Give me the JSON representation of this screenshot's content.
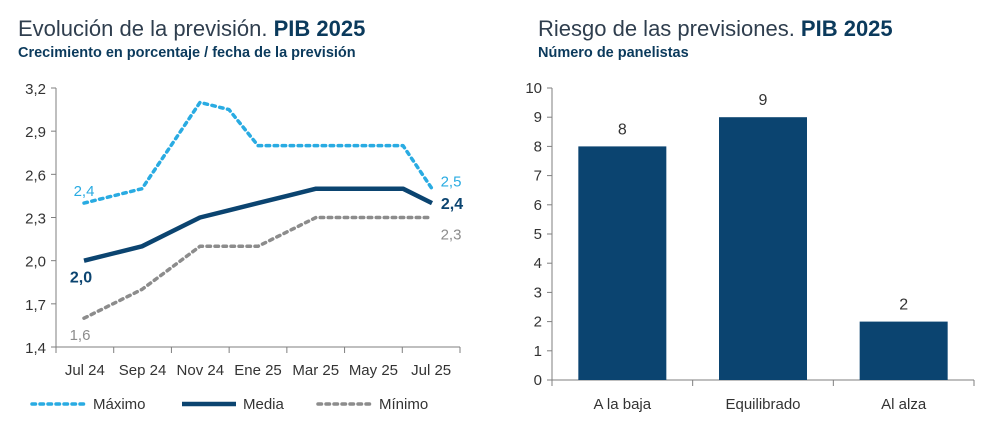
{
  "left": {
    "title_plain": "Evolución de la previsión. ",
    "title_bold": "PIB 2025",
    "subtitle": "Crecimiento en porcentaje / fecha de la previsión"
  },
  "right": {
    "title_plain": "Riesgo de las previsiones. ",
    "title_bold": "PIB 2025",
    "subtitle": "Número de panelistas"
  },
  "colors": {
    "max": "#29abe2",
    "mean": "#0b4470",
    "min": "#8c8c8c",
    "bar": "#0b4470",
    "axis": "#7f7f7f"
  },
  "chart_data": [
    {
      "type": "line",
      "title": "Evolución de la previsión. PIB 2025",
      "subtitle": "Crecimiento en porcentaje / fecha de la previsión",
      "x_tick_labels": [
        "Jul 24",
        "Sep 24",
        "Nov 24",
        "Ene 25",
        "Mar 25",
        "May 25",
        "Jul 25"
      ],
      "x": [
        0,
        1,
        2,
        3,
        4,
        5,
        6,
        7,
        8,
        9,
        10,
        11,
        12
      ],
      "ylim": [
        1.4,
        3.2
      ],
      "yticks": [
        1.4,
        1.7,
        2.0,
        2.3,
        2.6,
        2.9,
        3.2
      ],
      "ytick_labels": [
        "1,4",
        "1,7",
        "2,0",
        "2,3",
        "2,6",
        "2,9",
        "3,2"
      ],
      "series": [
        {
          "name": "Máximo",
          "style": "dotted",
          "values": [
            2.4,
            2.45,
            2.5,
            2.8,
            3.1,
            3.05,
            2.8,
            2.8,
            2.8,
            2.8,
            2.8,
            2.8,
            2.5
          ],
          "first_label": "2,4",
          "last_label": "2,5"
        },
        {
          "name": "Media",
          "style": "solid",
          "values": [
            2.0,
            2.05,
            2.1,
            2.2,
            2.3,
            2.35,
            2.4,
            2.45,
            2.5,
            2.5,
            2.5,
            2.5,
            2.4
          ],
          "first_label": "2,0",
          "last_label": "2,4"
        },
        {
          "name": "Mínimo",
          "style": "dotted",
          "values": [
            1.6,
            1.7,
            1.8,
            1.95,
            2.1,
            2.1,
            2.1,
            2.2,
            2.3,
            2.3,
            2.3,
            2.3,
            2.3
          ],
          "first_label": "1,6",
          "last_label": "2,3"
        }
      ],
      "legend": [
        "Máximo",
        "Media",
        "Mínimo"
      ],
      "legend_position": "bottom"
    },
    {
      "type": "bar",
      "title": "Riesgo de las previsiones. PIB 2025",
      "subtitle": "Número de panelistas",
      "categories": [
        "A la baja",
        "Equilibrado",
        "Al alza"
      ],
      "values": [
        8,
        9,
        2
      ],
      "value_labels": [
        "8",
        "9",
        "2"
      ],
      "ylim": [
        0,
        10
      ],
      "yticks": [
        0,
        1,
        2,
        3,
        4,
        5,
        6,
        7,
        8,
        9,
        10
      ],
      "ytick_labels": [
        "0",
        "1",
        "2",
        "3",
        "4",
        "5",
        "6",
        "7",
        "8",
        "9",
        "10"
      ]
    }
  ]
}
